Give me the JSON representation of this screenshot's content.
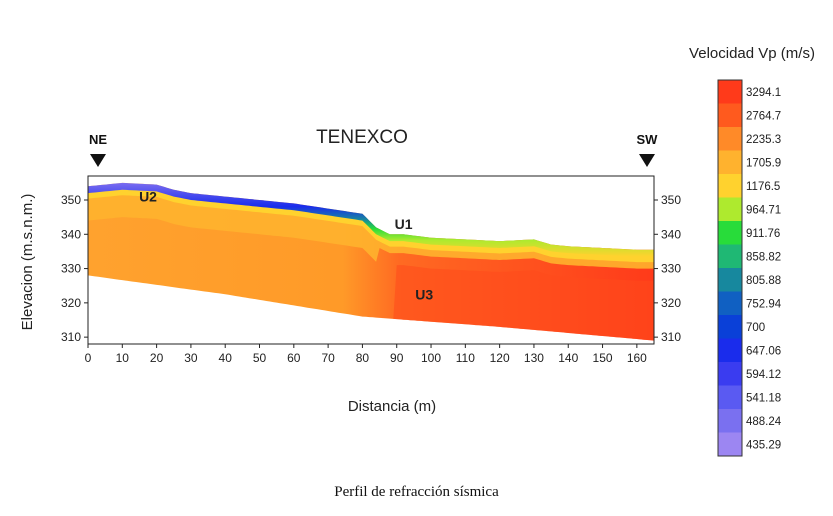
{
  "chart_data": {
    "type": "heatmap",
    "title": "TENEXCO",
    "xlabel": "Distancia (m)",
    "ylabel": "Elevacion (m.s.n.m.)",
    "xlim": [
      0,
      165
    ],
    "ylim": [
      308,
      357
    ],
    "x_ticks": [
      0,
      10,
      20,
      30,
      40,
      50,
      60,
      70,
      80,
      90,
      100,
      110,
      120,
      130,
      140,
      150,
      160
    ],
    "y_ticks": [
      310,
      320,
      330,
      340,
      350
    ],
    "orientation_left": "NE",
    "orientation_right": "SW",
    "colorbar": {
      "title": "Velocidad Vp (m/s)",
      "levels": [
        "3294.1",
        "2764.7",
        "2235.3",
        "1705.9",
        "1176.5",
        "964.71",
        "911.76",
        "858.82",
        "805.88",
        "752.94",
        "700",
        "647.06",
        "594.12",
        "541.18",
        "488.24",
        "435.29"
      ],
      "colors": [
        "#ff3a1a",
        "#ff5a1e",
        "#ff8a28",
        "#ffb22e",
        "#ffd22e",
        "#aeea2e",
        "#28dc3a",
        "#1fb874",
        "#17889e",
        "#1060c2",
        "#0a40d8",
        "#1a2cec",
        "#3a3cf0",
        "#5a5af2",
        "#7a70f0",
        "#9c86f2"
      ]
    },
    "surface_profile": {
      "x": [
        0,
        10,
        20,
        25,
        30,
        40,
        50,
        60,
        70,
        80,
        84,
        88,
        92,
        100,
        110,
        120,
        130,
        135,
        140,
        150,
        160,
        165
      ],
      "elevation": [
        354,
        355,
        354.5,
        353,
        352,
        351,
        350,
        349,
        347.5,
        346,
        342,
        340,
        340,
        339,
        338.5,
        338,
        338.5,
        337,
        336.5,
        336,
        335.5,
        335.5
      ]
    },
    "bottom_profile": {
      "x": [
        0,
        40,
        80,
        120,
        165
      ],
      "elevation": [
        328,
        322.5,
        316,
        313,
        309
      ]
    },
    "units": [
      {
        "label": "U1",
        "x": 92,
        "elevation": 341.5
      },
      {
        "label": "U2",
        "x": 17.5,
        "elevation": 349.5
      },
      {
        "label": "U3",
        "x": 98,
        "elevation": 321
      }
    ]
  },
  "caption": "Perfil de refracción sísmica"
}
